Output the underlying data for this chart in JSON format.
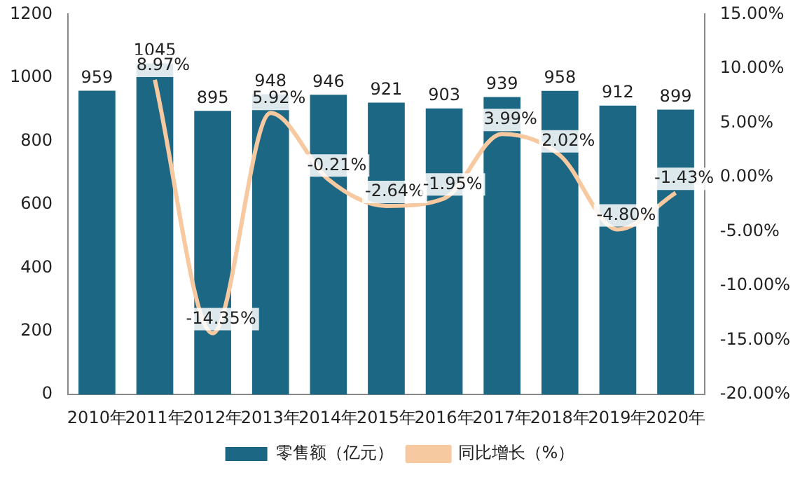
{
  "chart_data": {
    "type": "bar",
    "categories": [
      "2010年",
      "2011年",
      "2012年",
      "2013年",
      "2014年",
      "2015年",
      "2016年",
      "2017年",
      "2018年",
      "2019年",
      "2020年"
    ],
    "series": [
      {
        "name": "零售额（亿元）",
        "color": "#1c6783",
        "values": [
          959,
          1045,
          895,
          948,
          946,
          921,
          903,
          939,
          958,
          912,
          899
        ]
      },
      {
        "name": "同比增长（%）",
        "type": "line",
        "axis": "y2",
        "color": "#f7c9a0",
        "values": [
          null,
          8.97,
          -14.35,
          5.92,
          -0.21,
          -2.64,
          -1.95,
          3.99,
          2.02,
          -4.8,
          -1.43
        ],
        "value_labels": [
          null,
          "8.97%",
          "-14.35%",
          "5.92%",
          "-0.21%",
          "-2.64%",
          "-1.95%",
          "3.99%",
          "2.02%",
          "-4.80%",
          "-1.43%"
        ]
      }
    ],
    "data_labels": true,
    "ylim": [
      0,
      1200
    ],
    "yticks": [
      0,
      200,
      400,
      600,
      800,
      1000,
      1200
    ],
    "y2lim": [
      -20,
      15
    ],
    "y2ticks": [
      {
        "value": -20,
        "label": "-20.00%"
      },
      {
        "value": -15,
        "label": "-15.00%"
      },
      {
        "value": -10,
        "label": "-10.00%"
      },
      {
        "value": -5,
        "label": "-5.00%"
      },
      {
        "value": 0,
        "label": "0.00%"
      },
      {
        "value": 5,
        "label": "5.00%"
      },
      {
        "value": 10,
        "label": "10.00%"
      },
      {
        "value": 15,
        "label": "15.00%"
      }
    ],
    "grid": false,
    "legend": "bottom",
    "marker": "none",
    "line_style": "solid"
  }
}
